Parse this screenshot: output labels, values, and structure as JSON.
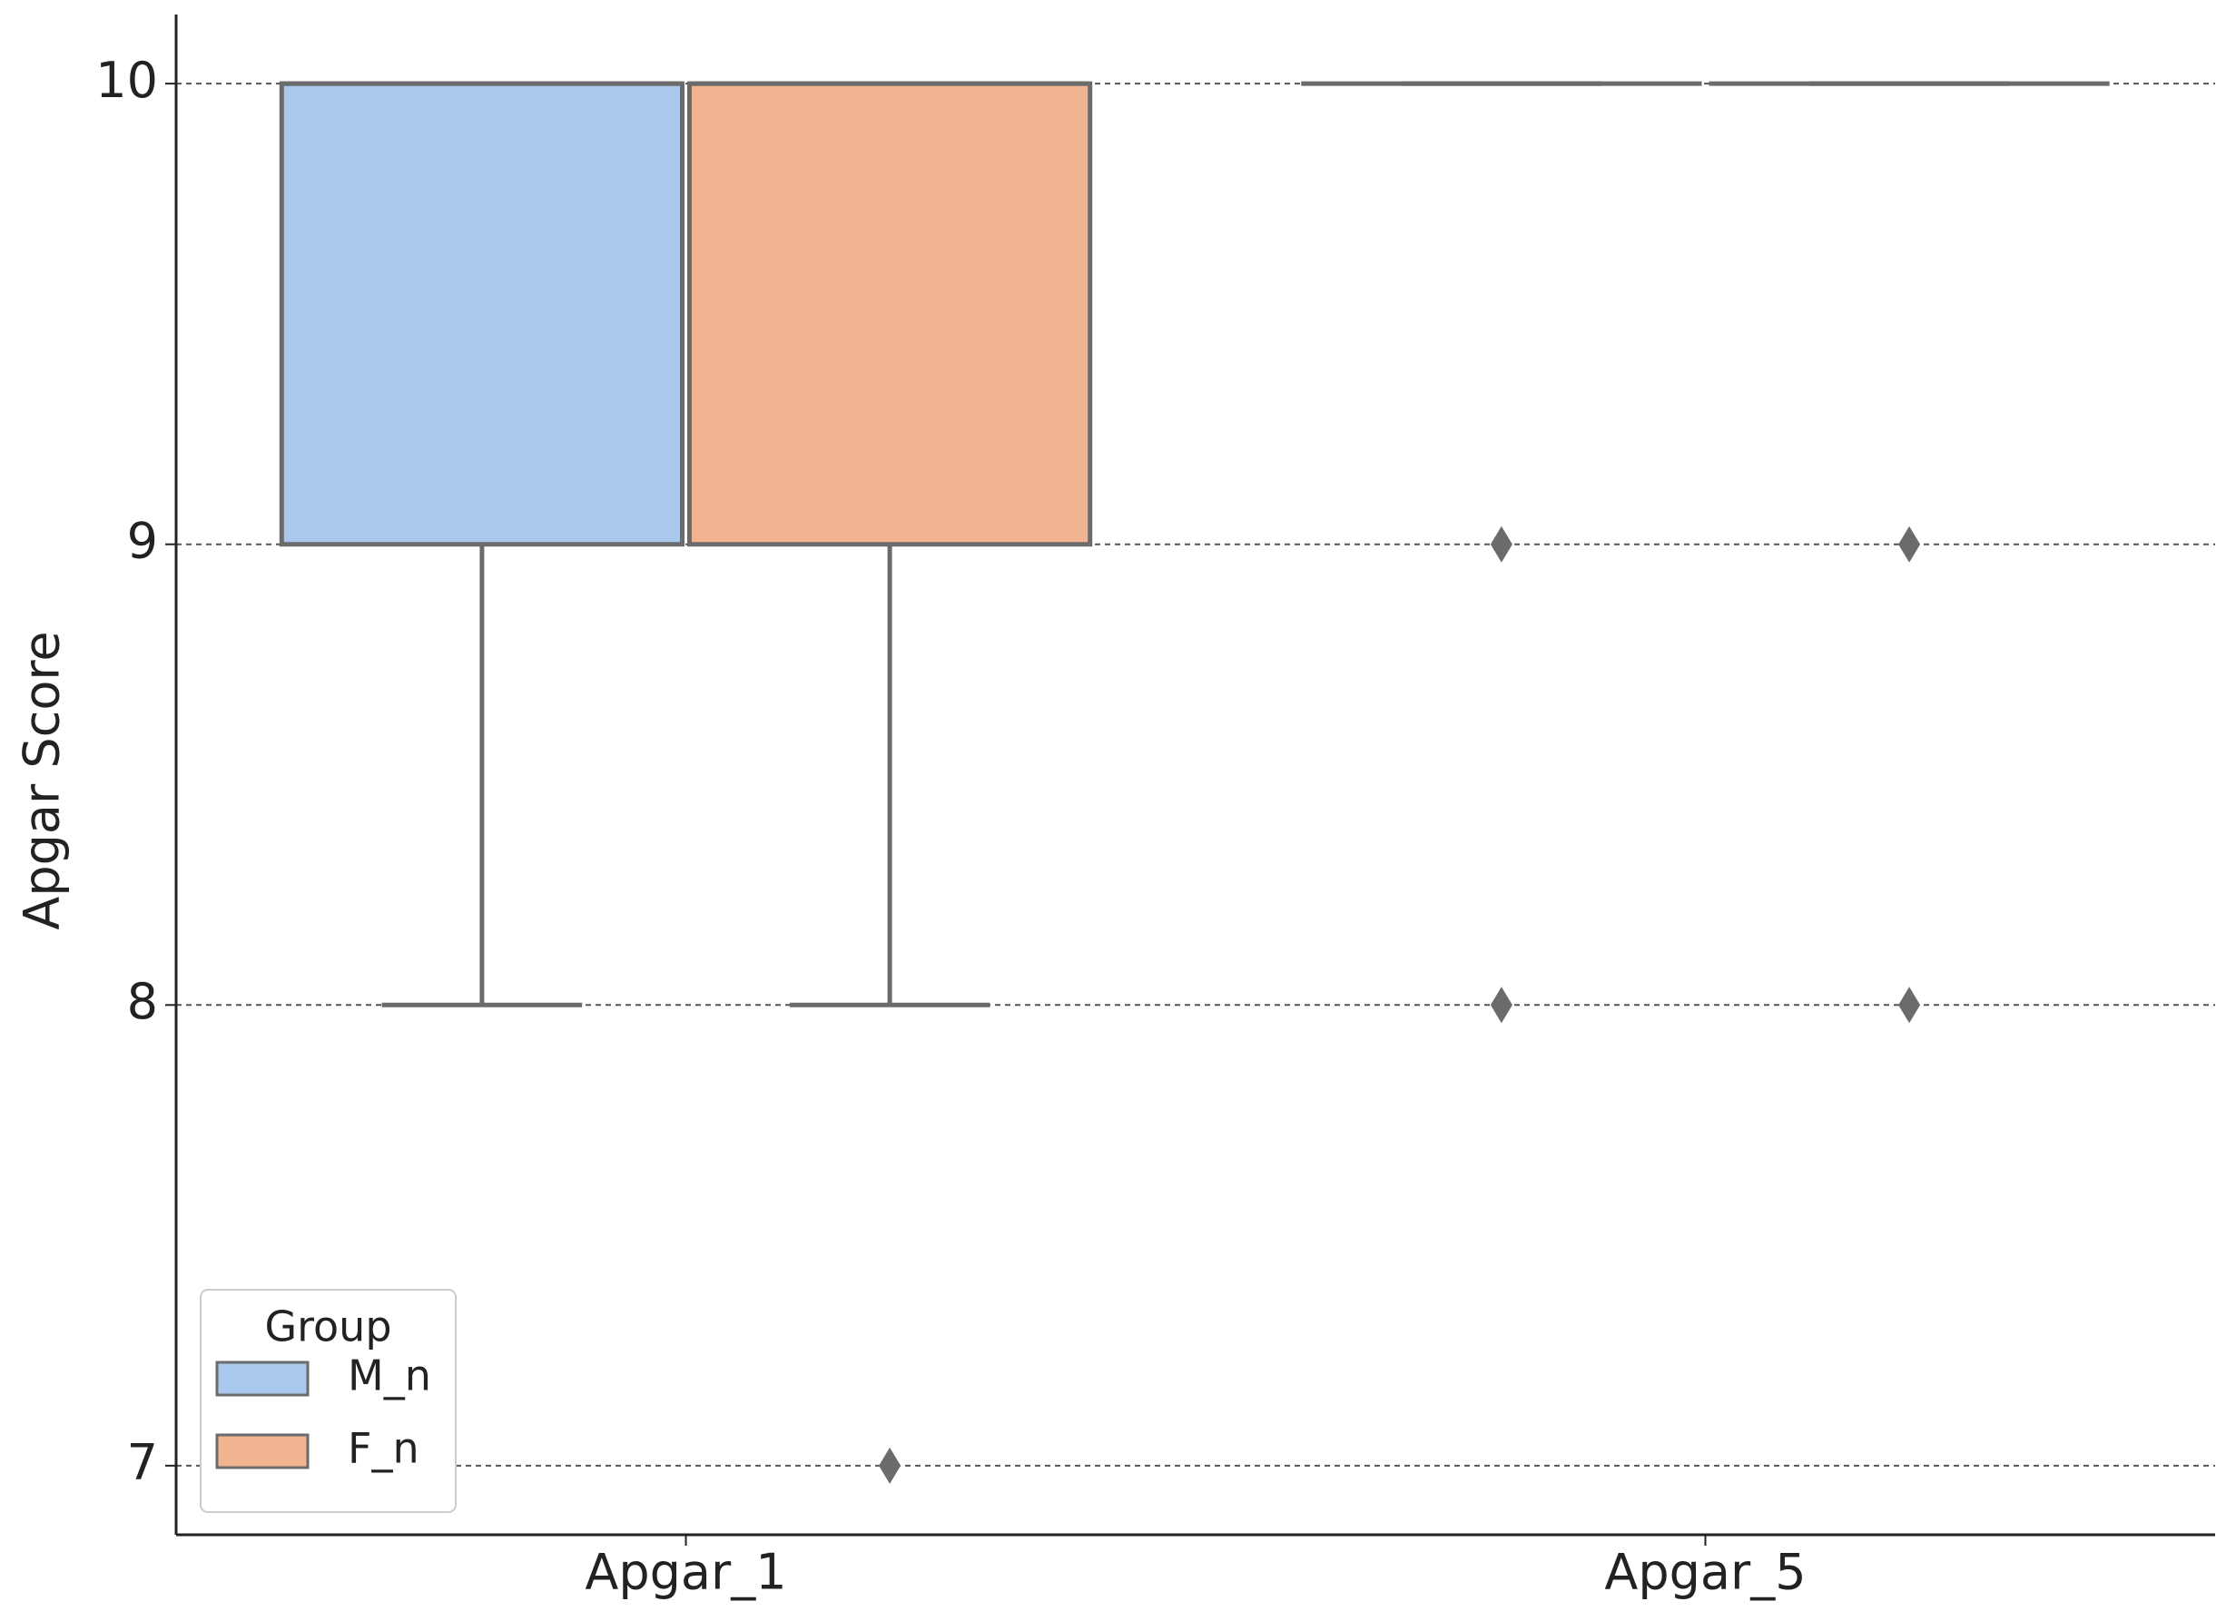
{
  "chart_data": {
    "type": "box",
    "y_label": "Apgar Score",
    "categories": [
      "Apgar_1",
      "Apgar_5"
    ],
    "series": [
      {
        "name": "M_n",
        "color": "#a9c8ec",
        "boxes": [
          {
            "whislo": 8,
            "q1": 9,
            "med": 10,
            "q3": 10,
            "whishi": 10,
            "fliers": []
          },
          {
            "whislo": 10,
            "q1": 10,
            "med": 10,
            "q3": 10,
            "whishi": 10,
            "fliers": [
              9,
              8
            ]
          }
        ]
      },
      {
        "name": "F_n",
        "color": "#f0b590",
        "boxes": [
          {
            "whislo": 8,
            "q1": 9,
            "med": 10,
            "q3": 10,
            "whishi": 10,
            "fliers": [
              7
            ]
          },
          {
            "whislo": 10,
            "q1": 10,
            "med": 10,
            "q3": 10,
            "whishi": 10,
            "fliers": [
              9,
              8
            ]
          }
        ]
      }
    ],
    "ylim": [
      6.85,
      10.15
    ],
    "yticks": [
      7,
      8,
      9,
      10
    ],
    "grid": true,
    "legend_title": "Group",
    "legend_loc": "lower left"
  }
}
